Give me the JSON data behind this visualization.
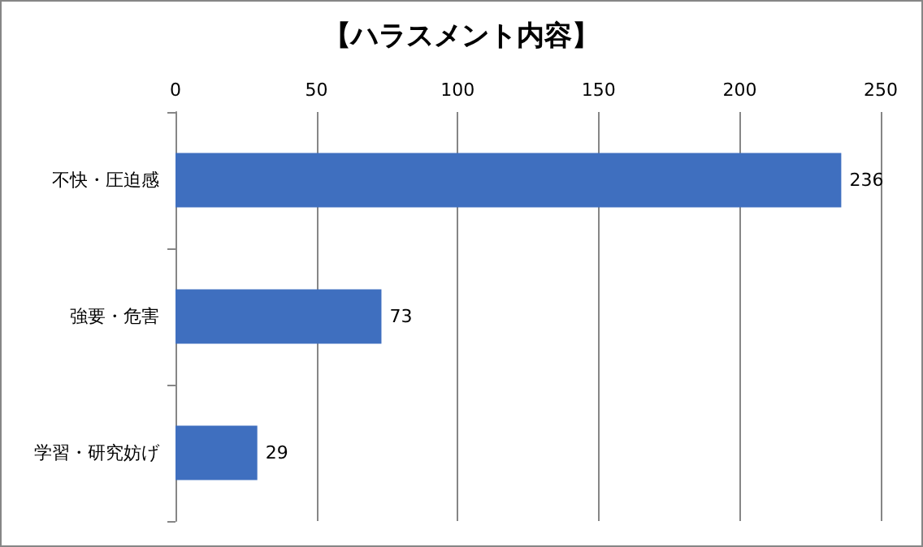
{
  "chart_data": {
    "type": "bar",
    "title": "【ハラスメント内容】",
    "orientation": "horizontal",
    "categories": [
      "不快・圧迫感",
      "強要・危害",
      "学習・研究妨げ"
    ],
    "values": [
      236,
      73,
      29
    ],
    "color": "#3f6fbf",
    "xlim": [
      0,
      250
    ],
    "xticks": [
      0,
      50,
      100,
      150,
      200,
      250
    ],
    "grid": "x",
    "data_labels": true
  }
}
